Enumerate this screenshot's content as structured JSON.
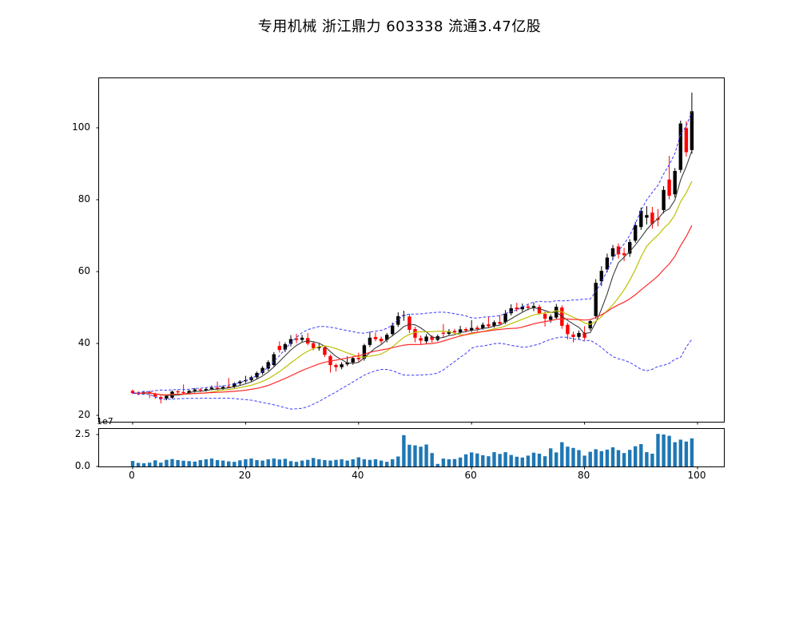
{
  "title": "专用机械 浙江鼎力 603338 流通3.47亿股",
  "chart_data": {
    "type": "candlestick",
    "title": "专用机械 浙江鼎力 603338 流通3.47亿股",
    "legend_position": "none",
    "grid": false,
    "x_axis": {
      "ticks": [
        0,
        20,
        40,
        60,
        80,
        100
      ],
      "range": [
        -6,
        104.7
      ]
    },
    "price_axis": {
      "ticks": [
        20,
        40,
        60,
        80,
        100
      ],
      "range": [
        18.2,
        113.8
      ]
    },
    "volume_axis": {
      "tick_labels": [
        "0.0",
        "2.5"
      ],
      "tick_values_1e7": [
        0,
        2.5
      ],
      "multiplier_label": "1e7",
      "range_1e7": [
        0,
        2.93
      ]
    },
    "indicators": {
      "ma_windows": [
        5,
        10,
        20
      ],
      "bollinger": {
        "window": 20,
        "mult": 2
      },
      "ma5_color": "#3c3c3c",
      "ma10_color": "#bfbf00",
      "ma20_color": "#ff2a2a",
      "bollinger_color": "#3b3bff",
      "up_color": "#000000",
      "down_color": "#ff0000",
      "volume_color": "#1f77b4"
    },
    "ohlc": [
      [
        26.8,
        27.2,
        25.9,
        26.2
      ],
      [
        26.3,
        26.7,
        25.6,
        26.0
      ],
      [
        26.0,
        26.8,
        25.8,
        26.5
      ],
      [
        26.5,
        26.9,
        24.8,
        26.1
      ],
      [
        26.0,
        26.3,
        24.6,
        25.2
      ],
      [
        25.1,
        25.5,
        23.3,
        24.6
      ],
      [
        24.7,
        25.7,
        24.2,
        25.4
      ],
      [
        24.9,
        26.9,
        24.6,
        26.6
      ],
      [
        26.7,
        27.1,
        26.0,
        26.4
      ],
      [
        26.5,
        28.6,
        25.9,
        26.2
      ],
      [
        26.2,
        27.1,
        25.8,
        26.8
      ],
      [
        26.8,
        27.6,
        26.3,
        27.2
      ],
      [
        27.2,
        27.5,
        26.5,
        26.9
      ],
      [
        26.9,
        27.7,
        26.6,
        27.3
      ],
      [
        27.3,
        28.3,
        27.0,
        27.7
      ],
      [
        27.7,
        29.4,
        27.0,
        27.4
      ],
      [
        27.4,
        28.3,
        26.9,
        27.9
      ],
      [
        28.0,
        30.4,
        27.5,
        27.9
      ],
      [
        28.0,
        29.2,
        27.6,
        28.9
      ],
      [
        28.9,
        29.8,
        28.3,
        29.4
      ],
      [
        29.5,
        31.0,
        29.0,
        29.8
      ],
      [
        29.8,
        31.0,
        29.3,
        30.6
      ],
      [
        30.6,
        32.2,
        30.1,
        31.8
      ],
      [
        31.8,
        33.7,
        31.3,
        33.2
      ],
      [
        33.0,
        35.3,
        32.4,
        34.8
      ],
      [
        34.0,
        37.6,
        33.5,
        37.0
      ],
      [
        39.3,
        40.6,
        37.5,
        38.2
      ],
      [
        38.3,
        40.3,
        37.6,
        39.8
      ],
      [
        39.9,
        42.3,
        39.2,
        41.2
      ],
      [
        41.4,
        42.7,
        40.1,
        41.0
      ],
      [
        41.0,
        42.4,
        40.3,
        41.6
      ],
      [
        41.5,
        42.9,
        39.5,
        40.0
      ],
      [
        40.1,
        40.6,
        38.1,
        38.7
      ],
      [
        38.7,
        39.9,
        38.0,
        39.1
      ],
      [
        38.9,
        39.2,
        36.2,
        36.8
      ],
      [
        36.5,
        36.9,
        31.9,
        34.0
      ],
      [
        34.0,
        34.4,
        32.2,
        33.4
      ],
      [
        33.4,
        34.8,
        32.8,
        34.2
      ],
      [
        34.2,
        36.4,
        33.7,
        34.7
      ],
      [
        34.7,
        36.3,
        34.1,
        35.9
      ],
      [
        36.0,
        37.4,
        35.0,
        35.6
      ],
      [
        35.8,
        39.9,
        35.2,
        39.5
      ],
      [
        39.6,
        43.3,
        39.0,
        41.6
      ],
      [
        41.8,
        43.1,
        40.6,
        41.2
      ],
      [
        41.3,
        41.9,
        39.9,
        40.6
      ],
      [
        41.0,
        42.9,
        40.3,
        42.4
      ],
      [
        42.6,
        45.8,
        42.0,
        45.0
      ],
      [
        45.2,
        48.7,
        44.6,
        47.6
      ],
      [
        47.7,
        49.1,
        46.3,
        47.9
      ],
      [
        47.5,
        48.2,
        42.9,
        43.8
      ],
      [
        44.0,
        44.6,
        40.3,
        41.6
      ],
      [
        41.5,
        42.2,
        39.6,
        40.8
      ],
      [
        40.6,
        42.6,
        40.0,
        41.9
      ],
      [
        41.9,
        42.3,
        40.2,
        41.0
      ],
      [
        41.0,
        42.5,
        40.6,
        42.0
      ],
      [
        43.0,
        45.4,
        41.6,
        42.7
      ],
      [
        42.7,
        44.0,
        42.2,
        43.4
      ],
      [
        43.5,
        44.1,
        42.6,
        43.1
      ],
      [
        43.1,
        44.9,
        42.7,
        43.9
      ],
      [
        44.0,
        44.5,
        43.0,
        43.6
      ],
      [
        43.6,
        46.5,
        43.2,
        44.3
      ],
      [
        44.4,
        45.0,
        43.4,
        44.0
      ],
      [
        44.1,
        45.8,
        43.8,
        45.2
      ],
      [
        45.3,
        47.3,
        44.3,
        44.8
      ],
      [
        44.9,
        46.4,
        44.4,
        45.9
      ],
      [
        46.0,
        47.9,
        45.0,
        45.5
      ],
      [
        45.9,
        49.3,
        45.4,
        48.3
      ],
      [
        48.4,
        50.9,
        47.8,
        49.8
      ],
      [
        50.0,
        51.3,
        48.9,
        49.5
      ],
      [
        49.5,
        51.1,
        48.9,
        50.2
      ],
      [
        50.3,
        51.0,
        49.2,
        49.9
      ],
      [
        49.9,
        51.4,
        49.0,
        50.4
      ],
      [
        50.2,
        50.8,
        48.0,
        48.4
      ],
      [
        48.2,
        48.9,
        44.7,
        46.9
      ],
      [
        46.6,
        48.1,
        45.8,
        47.5
      ],
      [
        47.2,
        51.0,
        46.6,
        50.2
      ],
      [
        50.0,
        50.6,
        44.1,
        44.9
      ],
      [
        45.2,
        45.8,
        41.1,
        42.6
      ],
      [
        42.5,
        43.3,
        40.3,
        41.8
      ],
      [
        41.8,
        43.6,
        41.0,
        42.9
      ],
      [
        43.0,
        44.8,
        40.9,
        41.6
      ],
      [
        44.2,
        46.8,
        43.6,
        46.2
      ],
      [
        47.6,
        57.9,
        46.9,
        56.9
      ],
      [
        57.3,
        61.5,
        56.0,
        60.2
      ],
      [
        60.6,
        65.0,
        59.8,
        63.9
      ],
      [
        64.2,
        67.4,
        63.2,
        66.5
      ],
      [
        67.0,
        67.8,
        63.6,
        64.8
      ],
      [
        65.1,
        66.6,
        62.9,
        64.6
      ],
      [
        65.0,
        69.0,
        64.1,
        68.2
      ],
      [
        68.6,
        73.8,
        68.0,
        72.9
      ],
      [
        72.4,
        77.8,
        71.6,
        76.9
      ],
      [
        75.0,
        78.2,
        73.1,
        75.7
      ],
      [
        76.4,
        78.0,
        71.9,
        73.3
      ],
      [
        74.8,
        77.4,
        72.6,
        74.4
      ],
      [
        77.1,
        83.8,
        76.2,
        82.7
      ],
      [
        85.6,
        92.2,
        80.1,
        81.1
      ],
      [
        81.5,
        88.8,
        80.6,
        88.0
      ],
      [
        88.3,
        102.0,
        87.5,
        101.2
      ],
      [
        99.9,
        101.8,
        92.0,
        93.2
      ],
      [
        93.8,
        109.8,
        92.8,
        104.6
      ]
    ],
    "volume_1e7": [
      0.43,
      0.28,
      0.25,
      0.3,
      0.48,
      0.3,
      0.52,
      0.58,
      0.5,
      0.45,
      0.42,
      0.38,
      0.5,
      0.56,
      0.62,
      0.5,
      0.46,
      0.4,
      0.36,
      0.48,
      0.56,
      0.62,
      0.5,
      0.46,
      0.56,
      0.62,
      0.55,
      0.6,
      0.42,
      0.36,
      0.46,
      0.52,
      0.66,
      0.56,
      0.5,
      0.46,
      0.52,
      0.56,
      0.46,
      0.56,
      0.72,
      0.56,
      0.52,
      0.56,
      0.46,
      0.36,
      0.56,
      0.78,
      2.45,
      1.7,
      1.65,
      1.55,
      1.72,
      1.05,
      0.2,
      0.62,
      0.56,
      0.58,
      0.7,
      0.95,
      1.1,
      1.02,
      0.88,
      0.8,
      1.12,
      0.98,
      1.12,
      0.9,
      0.76,
      0.7,
      0.85,
      1.08,
      1.0,
      0.8,
      1.42,
      1.1,
      1.9,
      1.55,
      1.45,
      1.28,
      0.85,
      1.15,
      1.35,
      1.2,
      1.32,
      1.5,
      1.28,
      1.05,
      1.3,
      1.58,
      1.75,
      1.12,
      1.0,
      2.55,
      2.5,
      2.4,
      1.9,
      2.1,
      1.95,
      2.2
    ]
  }
}
